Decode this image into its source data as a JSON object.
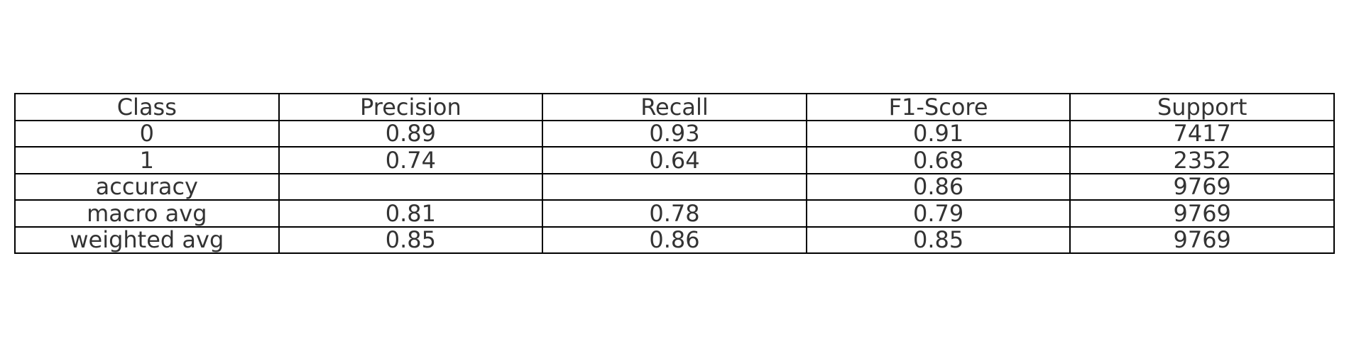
{
  "chart_data": {
    "type": "table",
    "columns": [
      "Class",
      "Precision",
      "Recall",
      "F1-Score",
      "Support"
    ],
    "rows": [
      [
        "0",
        "0.89",
        "0.93",
        "0.91",
        "7417"
      ],
      [
        "1",
        "0.74",
        "0.64",
        "0.68",
        "2352"
      ],
      [
        "accuracy",
        "",
        "",
        "0.86",
        "9769"
      ],
      [
        "macro avg",
        "0.81",
        "0.78",
        "0.79",
        "9769"
      ],
      [
        "weighted avg",
        "0.85",
        "0.86",
        "0.85",
        "9769"
      ]
    ]
  },
  "colors": {
    "text": "#333333",
    "border": "#000000",
    "background": "#ffffff"
  }
}
